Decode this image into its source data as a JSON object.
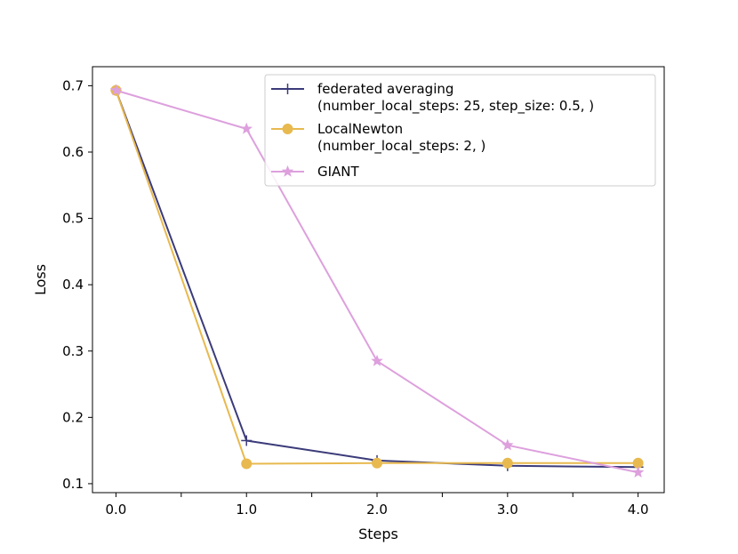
{
  "chart_data": {
    "type": "line",
    "xlabel": "Steps",
    "ylabel": "Loss",
    "xlim": [
      -0.18,
      4.2
    ],
    "ylim": [
      0.0865,
      0.7287
    ],
    "x": [
      0.0,
      1.0,
      2.0,
      3.0,
      4.0
    ],
    "x_ticks": [
      0.0,
      0.5,
      1.0,
      1.5,
      2.0,
      2.5,
      3.0,
      3.5,
      4.0
    ],
    "x_tick_labels": [
      "0.0",
      "",
      "1.0",
      "",
      "2.0",
      "",
      "3.0",
      "",
      "4.0"
    ],
    "y_ticks": [
      0.1,
      0.2,
      0.3,
      0.4,
      0.5,
      0.6,
      0.7
    ],
    "y_tick_labels": [
      "0.1",
      "0.2",
      "0.3",
      "0.4",
      "0.5",
      "0.6",
      "0.7"
    ],
    "grid": false,
    "legend_position": "top-right",
    "series": [
      {
        "name": "federated averaging\n(number_local_steps: 25, step_size: 0.5, )",
        "values": [
          0.693,
          0.165,
          0.135,
          0.127,
          0.125
        ],
        "color": "#3b3b7a",
        "marker": "plus"
      },
      {
        "name": "LocalNewton\n(number_local_steps: 2, )",
        "values": [
          0.693,
          0.13,
          0.131,
          0.131,
          0.131
        ],
        "color": "#e8b94f",
        "marker": "circle"
      },
      {
        "name": "GIANT",
        "values": [
          0.693,
          0.635,
          0.285,
          0.158,
          0.117
        ],
        "color": "#dda0dd",
        "marker": "star"
      }
    ]
  }
}
